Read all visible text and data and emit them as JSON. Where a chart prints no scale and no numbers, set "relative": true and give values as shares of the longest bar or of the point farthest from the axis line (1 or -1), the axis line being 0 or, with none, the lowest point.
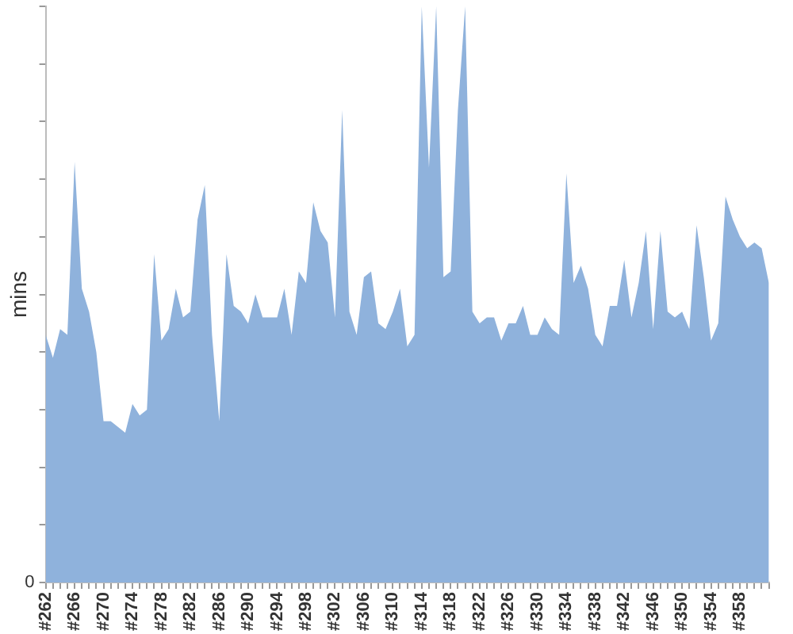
{
  "chart_data": {
    "type": "area",
    "ylabel": "mins",
    "relative": true,
    "annotations": [
      "0"
    ],
    "grid": false,
    "legend": false,
    "categories": [
      "#262",
      null,
      null,
      null,
      "#266",
      null,
      null,
      null,
      "#270",
      null,
      null,
      null,
      "#274",
      null,
      null,
      null,
      "#278",
      null,
      null,
      null,
      "#282",
      null,
      null,
      null,
      "#286",
      null,
      null,
      null,
      "#290",
      null,
      null,
      null,
      "#294",
      null,
      null,
      null,
      "#298",
      null,
      null,
      null,
      "#302",
      null,
      null,
      null,
      "#306",
      null,
      null,
      null,
      "#310",
      null,
      null,
      null,
      "#314",
      null,
      null,
      null,
      "#318",
      null,
      null,
      null,
      "#322",
      null,
      null,
      null,
      "#326",
      null,
      null,
      null,
      "#330",
      null,
      null,
      null,
      "#334",
      null,
      null,
      null,
      "#338",
      null,
      null,
      null,
      "#342",
      null,
      null,
      null,
      "#346",
      null,
      null,
      null,
      "#350",
      null,
      null,
      null,
      "#354",
      null,
      null,
      null,
      "#358",
      null,
      null,
      null,
      null
    ],
    "series": [
      {
        "color": "#8fb2dc",
        "values": [
          0.43,
          0.39,
          0.44,
          0.43,
          0.73,
          0.51,
          0.47,
          0.4,
          0.28,
          0.28,
          0.27,
          0.26,
          0.31,
          0.29,
          0.3,
          0.57,
          0.42,
          0.44,
          0.51,
          0.46,
          0.47,
          0.63,
          0.69,
          0.43,
          0.28,
          0.57,
          0.48,
          0.47,
          0.45,
          0.5,
          0.46,
          0.46,
          0.46,
          0.51,
          0.43,
          0.54,
          0.52,
          0.66,
          0.61,
          0.59,
          0.46,
          0.82,
          0.47,
          0.43,
          0.53,
          0.54,
          0.45,
          0.44,
          0.47,
          0.51,
          0.41,
          0.43,
          1,
          0.72,
          1,
          0.53,
          0.54,
          0.82,
          1,
          0.47,
          0.45,
          0.46,
          0.46,
          0.42,
          0.45,
          0.45,
          0.48,
          0.43,
          0.43,
          0.46,
          0.44,
          0.43,
          0.71,
          0.52,
          0.55,
          0.51,
          0.43,
          0.41,
          0.48,
          0.48,
          0.56,
          0.46,
          0.52,
          0.61,
          0.44,
          0.61,
          0.47,
          0.46,
          0.47,
          0.44,
          0.62,
          0.53,
          0.42,
          0.45,
          0.67,
          0.63,
          0.6,
          0.58,
          0.59,
          0.58,
          0.52
        ]
      }
    ]
  }
}
